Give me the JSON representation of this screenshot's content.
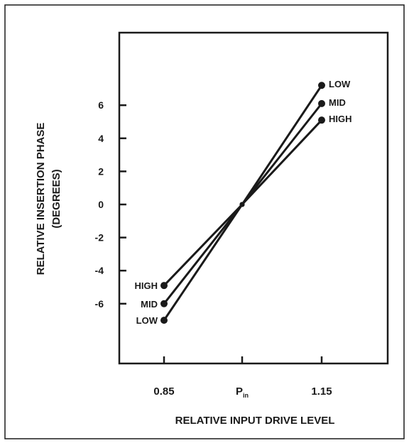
{
  "chart_data": {
    "type": "line",
    "title": "",
    "xlabel": "RELATIVE INPUT DRIVE LEVEL",
    "ylabel": [
      "RELATIVE INSERTION PHASE",
      "(DEGREES)"
    ],
    "x_categories": [
      {
        "main": "0.85",
        "sub": ""
      },
      {
        "main": "P",
        "sub": "in"
      },
      {
        "main": "1.15",
        "sub": ""
      }
    ],
    "ylim": [
      -10,
      10
    ],
    "yticks": [
      -6,
      -4,
      -2,
      0,
      2,
      4,
      6
    ],
    "ytick_labels": [
      "-6",
      "-4",
      "-2",
      "0",
      "2",
      "4",
      "6"
    ],
    "grid": false,
    "legend": "none",
    "series": [
      {
        "name": "LOW",
        "values": [
          -7,
          0,
          7.2
        ]
      },
      {
        "name": "MID",
        "values": [
          -6,
          0,
          6.1
        ]
      },
      {
        "name": "HIGH",
        "values": [
          -4.9,
          0,
          5.1
        ]
      }
    ],
    "line_color": "#1a1a1a"
  }
}
